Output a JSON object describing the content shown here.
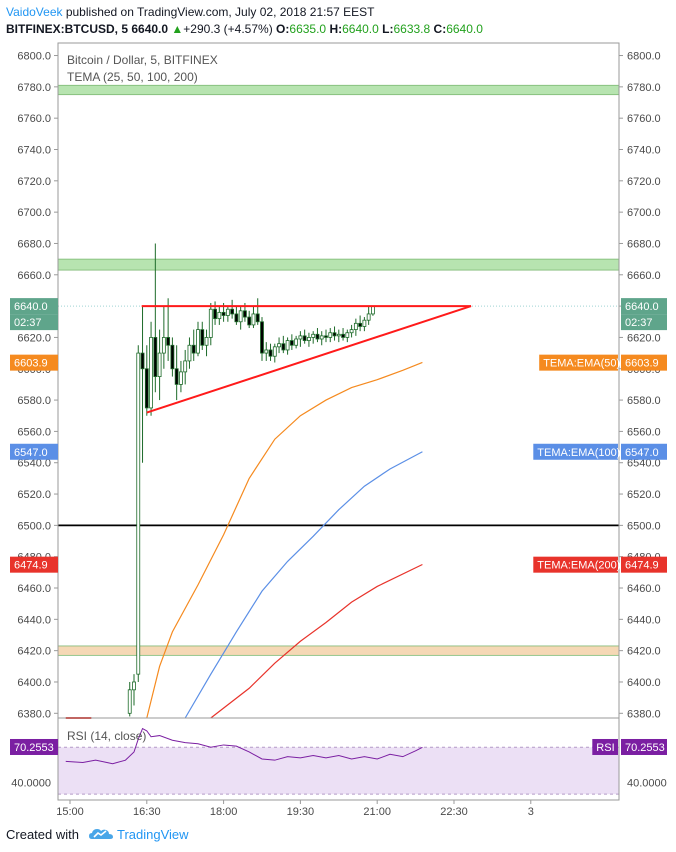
{
  "header": {
    "author": "VaidoVeek",
    "published_text": " published on TradingView.com, July 02, 2018 21:57 EEST",
    "symbol": "BITFINEX:BTCUSD, 5",
    "last": "6640.0",
    "change_arrow": "▲",
    "change": "+290.3 (+4.57%)",
    "o_label": "O:",
    "o_value": "6635.0",
    "h_label": "H:",
    "h_value": "6640.0",
    "l_label": "L:",
    "l_value": "6633.8",
    "c_label": "C:",
    "c_value": "6640.0"
  },
  "footer": {
    "created_with": "Created with",
    "brand": "TradingView",
    "logo_icon": "tradingview-cloud-icon"
  },
  "chart_data": {
    "type": "candlestick",
    "title": "Bitcoin / Dollar, 5, BITFINEX",
    "indicator": "TEMA (25, 50, 100, 200)",
    "y_ticks": [
      "6800.0",
      "6780.0",
      "6760.0",
      "6740.0",
      "6720.0",
      "6700.0",
      "6680.0",
      "6660.0",
      "6640.0",
      "6620.0",
      "6600.0",
      "6580.0",
      "6560.0",
      "6540.0",
      "6520.0",
      "6500.0",
      "6480.0",
      "6460.0",
      "6440.0",
      "6420.0",
      "6400.0",
      "6380.0"
    ],
    "ylim": [
      6377,
      6808
    ],
    "x_ticks": [
      "15:00",
      "16:30",
      "18:00",
      "19:30",
      "21:00",
      "22:30",
      "3"
    ],
    "last_price_label": "6640.0",
    "countdown_label": "02:37",
    "zones": [
      {
        "name": "resistance-zone-top",
        "low": 6775,
        "high": 6781,
        "color": "#b7e4b0"
      },
      {
        "name": "resistance-zone-mid",
        "low": 6663,
        "high": 6670,
        "color": "#b7e4b0"
      },
      {
        "name": "support-zone",
        "low": 6417,
        "high": 6423,
        "color": "#f5d8b5"
      }
    ],
    "horizontal_line": {
      "value": 6500,
      "color": "#000000"
    },
    "triangle": {
      "top_line": {
        "from": [
          "16:24",
          6640
        ],
        "to": [
          "22:50",
          6640
        ]
      },
      "bottom_line": {
        "from": [
          "16:30",
          6572
        ],
        "to": [
          "22:50",
          6640
        ]
      },
      "color": "#ff1a1a"
    },
    "ema_series": [
      {
        "name": "TEMA:EMA(50)",
        "value_label": "6603.9",
        "color": "#f58a1f",
        "points": [
          [
            "16:30",
            6375
          ],
          [
            "16:45",
            6410
          ],
          [
            "17:00",
            6432
          ],
          [
            "17:30",
            6462
          ],
          [
            "18:00",
            6494
          ],
          [
            "18:30",
            6530
          ],
          [
            "19:00",
            6555
          ],
          [
            "19:30",
            6570
          ],
          [
            "20:00",
            6580
          ],
          [
            "20:30",
            6588
          ],
          [
            "21:00",
            6593
          ],
          [
            "21:30",
            6599
          ],
          [
            "21:53",
            6604
          ]
        ]
      },
      {
        "name": "TEMA:EMA(100)",
        "value_label": "6547.0",
        "color": "#5b8fe6",
        "points": [
          [
            "17:15",
            6375
          ],
          [
            "17:45",
            6405
          ],
          [
            "18:15",
            6432
          ],
          [
            "18:45",
            6458
          ],
          [
            "19:15",
            6477
          ],
          [
            "19:45",
            6493
          ],
          [
            "20:15",
            6510
          ],
          [
            "20:45",
            6525
          ],
          [
            "21:15",
            6536
          ],
          [
            "21:53",
            6547
          ]
        ]
      },
      {
        "name": "TEMA:EMA(200)",
        "value_label": "6474.9",
        "color": "#e8332b",
        "points": [
          [
            "17:45",
            6376
          ],
          [
            "18:30",
            6396
          ],
          [
            "19:00",
            6412
          ],
          [
            "19:30",
            6426
          ],
          [
            "20:00",
            6438
          ],
          [
            "20:30",
            6451
          ],
          [
            "21:00",
            6461
          ],
          [
            "21:53",
            6475
          ]
        ]
      }
    ],
    "red_ema_left": {
      "color": "#e8332b",
      "points": [
        [
          "14:55",
          6377
        ],
        [
          "15:10",
          6376.5
        ],
        [
          "15:25",
          6376
        ]
      ]
    },
    "candles_meta": {
      "up_color": "#ffffff",
      "down_color": "#000000",
      "border_color": "#1e6b2a"
    },
    "candles": [
      [
        "16:10",
        6380,
        6400,
        6378,
        6395
      ],
      [
        "16:15",
        6395,
        6405,
        6385,
        6400
      ],
      [
        "16:20",
        6405,
        6615,
        6400,
        6610
      ],
      [
        "16:25",
        6610,
        6640,
        6540,
        6600
      ],
      [
        "16:30",
        6600,
        6615,
        6570,
        6575
      ],
      [
        "16:35",
        6575,
        6630,
        6570,
        6620
      ],
      [
        "16:40",
        6620,
        6680,
        6585,
        6595
      ],
      [
        "16:45",
        6595,
        6625,
        6580,
        6610
      ],
      [
        "16:50",
        6610,
        6640,
        6600,
        6620
      ],
      [
        "16:55",
        6620,
        6645,
        6605,
        6615
      ],
      [
        "17:00",
        6615,
        6620,
        6595,
        6600
      ],
      [
        "17:05",
        6600,
        6615,
        6580,
        6590
      ],
      [
        "17:10",
        6590,
        6605,
        6585,
        6598
      ],
      [
        "17:15",
        6598,
        6612,
        6590,
        6605
      ],
      [
        "17:20",
        6605,
        6620,
        6600,
        6615
      ],
      [
        "17:25",
        6615,
        6625,
        6605,
        6610
      ],
      [
        "17:30",
        6610,
        6630,
        6608,
        6625
      ],
      [
        "17:35",
        6625,
        6630,
        6612,
        6615
      ],
      [
        "17:40",
        6615,
        6625,
        6608,
        6620
      ],
      [
        "17:45",
        6620,
        6642,
        6615,
        6638
      ],
      [
        "17:50",
        6638,
        6643,
        6628,
        6632
      ],
      [
        "17:55",
        6632,
        6640,
        6628,
        6636
      ],
      [
        "18:00",
        6636,
        6642,
        6630,
        6634
      ],
      [
        "18:05",
        6634,
        6640,
        6630,
        6638
      ],
      [
        "18:10",
        6638,
        6644,
        6632,
        6635
      ],
      [
        "18:15",
        6635,
        6640,
        6628,
        6630
      ],
      [
        "18:20",
        6630,
        6640,
        6625,
        6637
      ],
      [
        "18:25",
        6637,
        6642,
        6630,
        6633
      ],
      [
        "18:30",
        6633,
        6637,
        6626,
        6628
      ],
      [
        "18:35",
        6628,
        6640,
        6626,
        6635
      ],
      [
        "18:40",
        6635,
        6645,
        6628,
        6630
      ],
      [
        "18:45",
        6630,
        6633,
        6605,
        6610
      ],
      [
        "18:50",
        6610,
        6617,
        6605,
        6612
      ],
      [
        "18:55",
        6612,
        6616,
        6605,
        6608
      ],
      [
        "19:00",
        6608,
        6616,
        6604,
        6614
      ],
      [
        "19:05",
        6614,
        6620,
        6610,
        6616
      ],
      [
        "19:10",
        6616,
        6621,
        6610,
        6612
      ],
      [
        "19:15",
        6612,
        6620,
        6609,
        6618
      ],
      [
        "19:20",
        6618,
        6622,
        6612,
        6615
      ],
      [
        "19:25",
        6615,
        6621,
        6613,
        6619
      ],
      [
        "19:30",
        6619,
        6624,
        6614,
        6621
      ],
      [
        "19:35",
        6621,
        6625,
        6616,
        6618
      ],
      [
        "19:40",
        6618,
        6623,
        6614,
        6620
      ],
      [
        "19:45",
        6620,
        6624,
        6616,
        6622
      ],
      [
        "19:50",
        6622,
        6626,
        6617,
        6619
      ],
      [
        "19:55",
        6619,
        6624,
        6615,
        6621
      ],
      [
        "20:00",
        6621,
        6625,
        6617,
        6620
      ],
      [
        "20:05",
        6620,
        6626,
        6617,
        6623
      ],
      [
        "20:10",
        6623,
        6627,
        6618,
        6621
      ],
      [
        "20:15",
        6621,
        6625,
        6617,
        6622
      ],
      [
        "20:20",
        6622,
        6626,
        6618,
        6620
      ],
      [
        "20:25",
        6620,
        6625,
        6617,
        6623
      ],
      [
        "20:30",
        6623,
        6628,
        6620,
        6625
      ],
      [
        "20:35",
        6625,
        6632,
        6621,
        6629
      ],
      [
        "20:40",
        6629,
        6634,
        6624,
        6627
      ],
      [
        "20:45",
        6627,
        6633,
        6624,
        6631
      ],
      [
        "20:50",
        6631,
        6640,
        6628,
        6635
      ],
      [
        "20:55",
        6635,
        6640,
        6633.8,
        6640
      ]
    ],
    "rsi": {
      "label": "RSI (14, close)",
      "value_label": "70.2553",
      "tick_label": "40.0000",
      "band": [
        30,
        70
      ],
      "ylim": [
        25,
        95
      ],
      "color": "#7b1fa2",
      "points": [
        [
          "14:55",
          58
        ],
        [
          "15:15",
          57
        ],
        [
          "15:30",
          59
        ],
        [
          "15:50",
          56
        ],
        [
          "16:05",
          59
        ],
        [
          "16:15",
          66
        ],
        [
          "16:20",
          77
        ],
        [
          "16:25",
          86
        ],
        [
          "16:30",
          84
        ],
        [
          "16:35",
          79
        ],
        [
          "16:45",
          80
        ],
        [
          "17:00",
          76
        ],
        [
          "17:15",
          74
        ],
        [
          "17:30",
          73
        ],
        [
          "17:45",
          70
        ],
        [
          "18:00",
          72
        ],
        [
          "18:15",
          71
        ],
        [
          "18:30",
          66
        ],
        [
          "18:45",
          60
        ],
        [
          "19:00",
          59
        ],
        [
          "19:15",
          62
        ],
        [
          "19:30",
          61
        ],
        [
          "19:45",
          63
        ],
        [
          "20:00",
          61
        ],
        [
          "20:15",
          63
        ],
        [
          "20:30",
          60
        ],
        [
          "20:45",
          62
        ],
        [
          "21:00",
          60
        ],
        [
          "21:15",
          64
        ],
        [
          "21:30",
          62
        ],
        [
          "21:45",
          67
        ],
        [
          "21:53",
          70
        ]
      ]
    }
  }
}
